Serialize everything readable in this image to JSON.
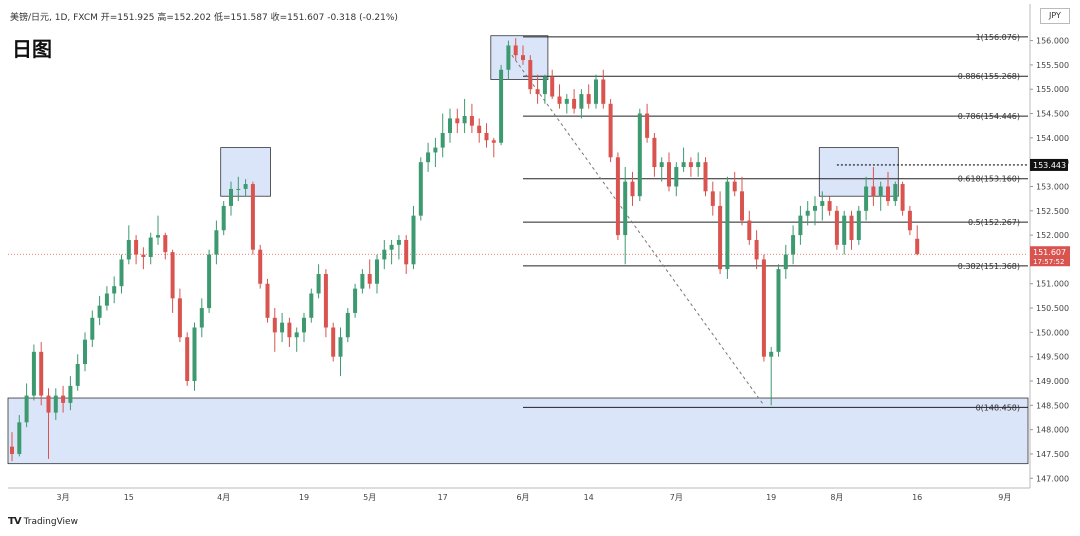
{
  "header": {
    "title_line": "美镑/日元, 1D, FXCM  开=151.925  高=152.202  低=151.587  收=151.607  -0.318 (-0.21%)",
    "timeframe_label": "日图",
    "currency_unit": "JPY",
    "logo_text": "TradingView"
  },
  "colors": {
    "up": "#3d9970",
    "down": "#d9534f",
    "zone_fill": "#cfdcf7",
    "zone_stroke": "#333333",
    "fib_line": "#222222",
    "price_tag": "#d9534f"
  },
  "chart_data": {
    "type": "candlestick",
    "title": "日图",
    "ylim": [
      146.8,
      156.3
    ],
    "y_ticks": [
      147.0,
      147.5,
      148.0,
      148.5,
      149.0,
      149.5,
      150.0,
      150.5,
      151.0,
      151.5,
      152.0,
      152.5,
      153.0,
      153.5,
      154.0,
      154.5,
      155.0,
      155.5,
      156.0
    ],
    "x_ticks": [
      {
        "label": "3月",
        "index": 7
      },
      {
        "label": "15",
        "index": 16
      },
      {
        "label": "4月",
        "index": 29
      },
      {
        "label": "19",
        "index": 40
      },
      {
        "label": "5月",
        "index": 49
      },
      {
        "label": "17",
        "index": 59
      },
      {
        "label": "6月",
        "index": 70
      },
      {
        "label": "14",
        "index": 79
      },
      {
        "label": "7月",
        "index": 91
      },
      {
        "label": "19",
        "index": 104
      },
      {
        "label": "8月",
        "index": 113
      },
      {
        "label": "16",
        "index": 124
      },
      {
        "label": "9月",
        "index": 136
      }
    ],
    "candles": [
      [
        147.65,
        147.95,
        147.35,
        147.5
      ],
      [
        147.5,
        148.3,
        147.45,
        148.15
      ],
      [
        148.15,
        148.95,
        148.05,
        148.7
      ],
      [
        148.7,
        149.75,
        148.6,
        149.6
      ],
      [
        149.6,
        149.8,
        148.5,
        148.7
      ],
      [
        148.7,
        148.85,
        147.4,
        148.35
      ],
      [
        148.35,
        148.85,
        148.2,
        148.7
      ],
      [
        148.7,
        148.9,
        148.35,
        148.55
      ],
      [
        148.55,
        149.1,
        148.4,
        148.9
      ],
      [
        148.9,
        149.55,
        148.8,
        149.35
      ],
      [
        149.35,
        150.0,
        149.2,
        149.85
      ],
      [
        149.85,
        150.45,
        149.7,
        150.3
      ],
      [
        150.3,
        150.75,
        150.15,
        150.55
      ],
      [
        150.55,
        150.95,
        150.45,
        150.8
      ],
      [
        150.8,
        151.15,
        150.6,
        150.95
      ],
      [
        150.95,
        151.6,
        150.8,
        151.5
      ],
      [
        151.5,
        152.2,
        151.4,
        151.9
      ],
      [
        151.9,
        152.0,
        151.4,
        151.6
      ],
      [
        151.6,
        151.75,
        151.3,
        151.55
      ],
      [
        151.55,
        152.05,
        151.4,
        151.95
      ],
      [
        151.95,
        152.4,
        151.8,
        152.0
      ],
      [
        152.0,
        152.05,
        151.5,
        151.65
      ],
      [
        151.65,
        151.7,
        150.4,
        150.7
      ],
      [
        150.7,
        150.9,
        149.8,
        149.9
      ],
      [
        149.9,
        150.0,
        148.9,
        149.0
      ],
      [
        149.0,
        150.2,
        148.8,
        150.1
      ],
      [
        150.1,
        150.7,
        149.9,
        150.5
      ],
      [
        150.5,
        151.7,
        150.4,
        151.6
      ],
      [
        151.6,
        152.3,
        151.4,
        152.1
      ],
      [
        152.1,
        152.7,
        152.0,
        152.6
      ],
      [
        152.6,
        153.1,
        152.4,
        152.95
      ],
      [
        152.95,
        153.2,
        152.7,
        152.95
      ],
      [
        152.95,
        153.15,
        152.8,
        153.05
      ],
      [
        153.05,
        153.1,
        151.6,
        151.7
      ],
      [
        151.7,
        151.8,
        150.9,
        151.0
      ],
      [
        151.0,
        151.1,
        150.2,
        150.3
      ],
      [
        150.3,
        150.5,
        149.6,
        150.0
      ],
      [
        150.0,
        150.4,
        149.8,
        150.2
      ],
      [
        150.2,
        150.3,
        149.7,
        149.9
      ],
      [
        149.9,
        150.1,
        149.6,
        150.0
      ],
      [
        150.0,
        150.4,
        149.8,
        150.3
      ],
      [
        150.3,
        150.9,
        150.2,
        150.8
      ],
      [
        150.8,
        151.4,
        150.7,
        151.2
      ],
      [
        151.2,
        151.3,
        149.9,
        150.1
      ],
      [
        150.1,
        150.2,
        149.4,
        149.5
      ],
      [
        149.5,
        150.1,
        149.1,
        149.9
      ],
      [
        149.9,
        150.5,
        149.8,
        150.4
      ],
      [
        150.4,
        151.0,
        150.3,
        150.9
      ],
      [
        150.9,
        151.3,
        150.8,
        151.2
      ],
      [
        151.2,
        151.5,
        150.9,
        151.0
      ],
      [
        151.0,
        151.6,
        150.8,
        151.5
      ],
      [
        151.5,
        151.9,
        151.3,
        151.7
      ],
      [
        151.7,
        151.9,
        151.4,
        151.8
      ],
      [
        151.8,
        152.0,
        151.5,
        151.9
      ],
      [
        151.9,
        152.0,
        151.2,
        151.4
      ],
      [
        151.4,
        152.6,
        151.3,
        152.4
      ],
      [
        152.4,
        153.6,
        152.3,
        153.5
      ],
      [
        153.5,
        153.9,
        153.3,
        153.7
      ],
      [
        153.7,
        154.0,
        153.4,
        153.8
      ],
      [
        153.8,
        154.5,
        153.6,
        154.1
      ],
      [
        154.1,
        154.6,
        153.9,
        154.4
      ],
      [
        154.4,
        154.6,
        154.1,
        154.3
      ],
      [
        154.3,
        154.8,
        154.1,
        154.45
      ],
      [
        154.45,
        154.7,
        154.1,
        154.25
      ],
      [
        154.25,
        154.4,
        153.9,
        154.1
      ],
      [
        154.1,
        154.3,
        153.8,
        153.95
      ],
      [
        153.95,
        154.0,
        153.6,
        153.9
      ],
      [
        153.9,
        155.5,
        153.85,
        155.4
      ],
      [
        155.4,
        156.0,
        155.2,
        155.9
      ],
      [
        155.9,
        156.05,
        155.6,
        155.7
      ],
      [
        155.7,
        155.9,
        155.5,
        155.6
      ],
      [
        155.6,
        155.7,
        154.9,
        155.0
      ],
      [
        155.0,
        155.3,
        154.7,
        154.9
      ],
      [
        154.9,
        155.3,
        154.7,
        155.25
      ],
      [
        155.25,
        155.4,
        154.8,
        154.85
      ],
      [
        154.85,
        155.1,
        154.6,
        154.7
      ],
      [
        154.7,
        154.9,
        154.5,
        154.8
      ],
      [
        154.8,
        155.0,
        154.5,
        154.6
      ],
      [
        154.6,
        155.0,
        154.4,
        154.9
      ],
      [
        154.9,
        155.1,
        154.6,
        154.7
      ],
      [
        154.7,
        155.3,
        154.6,
        155.2
      ],
      [
        155.2,
        155.4,
        154.6,
        154.7
      ],
      [
        154.7,
        154.8,
        153.5,
        153.6
      ],
      [
        153.6,
        153.7,
        151.9,
        152.0
      ],
      [
        152.0,
        153.4,
        151.4,
        153.1
      ],
      [
        153.1,
        153.3,
        152.6,
        152.8
      ],
      [
        152.8,
        154.6,
        152.7,
        154.5
      ],
      [
        154.5,
        154.7,
        153.9,
        154.0
      ],
      [
        154.0,
        154.1,
        153.2,
        153.4
      ],
      [
        153.4,
        153.6,
        153.1,
        153.5
      ],
      [
        153.5,
        153.7,
        152.9,
        153.0
      ],
      [
        153.0,
        153.5,
        152.8,
        153.4
      ],
      [
        153.4,
        153.8,
        153.3,
        153.5
      ],
      [
        153.5,
        153.6,
        153.2,
        153.4
      ],
      [
        153.4,
        153.7,
        153.2,
        153.5
      ],
      [
        153.5,
        153.6,
        152.8,
        152.9
      ],
      [
        152.9,
        153.1,
        152.4,
        152.6
      ],
      [
        152.6,
        152.9,
        151.2,
        151.3
      ],
      [
        151.3,
        153.2,
        151.1,
        153.1
      ],
      [
        153.1,
        153.3,
        152.8,
        152.9
      ],
      [
        152.9,
        153.2,
        152.2,
        152.3
      ],
      [
        152.3,
        152.5,
        151.8,
        151.9
      ],
      [
        151.9,
        152.1,
        151.3,
        151.5
      ],
      [
        151.5,
        151.6,
        149.4,
        149.5
      ],
      [
        149.5,
        149.7,
        148.5,
        149.6
      ],
      [
        149.6,
        151.4,
        149.5,
        151.3
      ],
      [
        151.3,
        151.8,
        151.1,
        151.6
      ],
      [
        151.6,
        152.2,
        151.4,
        152.0
      ],
      [
        152.0,
        152.6,
        151.8,
        152.4
      ],
      [
        152.4,
        152.7,
        152.2,
        152.5
      ],
      [
        152.5,
        152.8,
        152.2,
        152.6
      ],
      [
        152.6,
        152.9,
        152.3,
        152.7
      ],
      [
        152.7,
        152.8,
        152.4,
        152.5
      ],
      [
        152.5,
        152.6,
        151.7,
        151.8
      ],
      [
        151.8,
        152.5,
        151.6,
        152.4
      ],
      [
        152.4,
        152.5,
        151.7,
        151.9
      ],
      [
        151.9,
        152.6,
        151.8,
        152.5
      ],
      [
        152.5,
        153.2,
        152.3,
        153.0
      ],
      [
        153.0,
        153.4,
        152.6,
        152.8
      ],
      [
        152.8,
        153.1,
        152.5,
        153.0
      ],
      [
        153.0,
        153.3,
        152.6,
        152.7
      ],
      [
        152.7,
        153.1,
        152.6,
        153.05
      ],
      [
        153.05,
        153.1,
        152.4,
        152.5
      ],
      [
        152.5,
        152.6,
        152.0,
        152.1
      ],
      [
        151.925,
        152.202,
        151.587,
        151.607
      ]
    ],
    "current_price": {
      "label": "151.607",
      "value": 151.607,
      "countdown": "17:57:52"
    },
    "dotted_level": {
      "label": "153.443",
      "value": 153.443
    },
    "fib_levels": [
      {
        "label": "1(156.076)",
        "value": 156.076
      },
      {
        "label": "0.886(155.268)",
        "value": 155.268
      },
      {
        "label": "0.786(154.446)",
        "value": 154.446
      },
      {
        "label": "0.618(153.160)",
        "value": 153.16
      },
      {
        "label": "0.5(152.267)",
        "value": 152.267
      },
      {
        "label": "0.382(151.368)",
        "value": 151.368
      },
      {
        "label": "0(148.458)",
        "value": 148.458
      }
    ],
    "zones": [
      {
        "start": 29,
        "end": 35,
        "low": 152.8,
        "high": 153.8
      },
      {
        "start": 66,
        "end": 73,
        "low": 155.2,
        "high": 156.1
      },
      {
        "start": 111,
        "end": 121,
        "low": 152.8,
        "high": 153.8
      },
      {
        "start": 0,
        "end": 139,
        "low": 147.3,
        "high": 148.65
      }
    ],
    "trendline": {
      "from": [
        68,
        155.8
      ],
      "to": [
        103,
        148.5
      ]
    }
  }
}
